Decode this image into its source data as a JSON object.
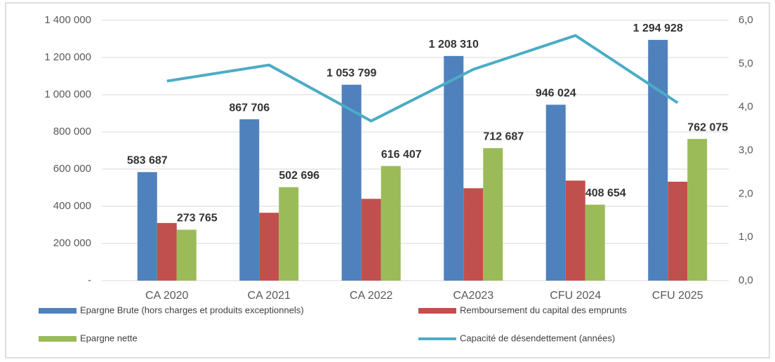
{
  "chart_data": {
    "type": "bar",
    "categories": [
      "CA 2020",
      "CA 2021",
      "CA 2022",
      "CA2023",
      "CFU 2024",
      "CFU 2025"
    ],
    "series": [
      {
        "name": "Epargne Brute (hors charges et produits exceptionnels)",
        "color": "#4f81bd",
        "values": [
          583687,
          867706,
          1053799,
          1208310,
          946024,
          1294928
        ],
        "value_labels": [
          "583 687",
          "867 706",
          "1 053 799",
          "1 208 310",
          "946 024",
          "1 294 928"
        ]
      },
      {
        "name": "Remboursement du capital des emprunts",
        "color": "#c0504d",
        "values": [
          310000,
          365000,
          440000,
          497000,
          538000,
          532000
        ]
      },
      {
        "name": "Epargne nette",
        "color": "#9bbb59",
        "values": [
          273765,
          502696,
          616407,
          712687,
          408654,
          762075
        ],
        "value_labels": [
          "273 765",
          "502 696",
          "616 407",
          "712 687",
          "408 654",
          "762 075"
        ]
      },
      {
        "name": "Capacité de désendettement (années)",
        "color": "#4bacc6",
        "type": "line",
        "axis": "y2",
        "values": [
          4.6,
          4.97,
          3.68,
          4.87,
          5.65,
          4.1
        ]
      }
    ],
    "ylim": [
      0,
      1400000
    ],
    "yticks": [
      {
        "value": 0,
        "label": "-"
      },
      {
        "value": 200000,
        "label": "200 000"
      },
      {
        "value": 400000,
        "label": "400 000"
      },
      {
        "value": 600000,
        "label": "600 000"
      },
      {
        "value": 800000,
        "label": "800 000"
      },
      {
        "value": 1000000,
        "label": "1 000 000"
      },
      {
        "value": 1200000,
        "label": "1 200 000"
      },
      {
        "value": 1400000,
        "label": "1 400 000"
      }
    ],
    "y2lim": [
      0,
      6
    ],
    "y2ticks": [
      {
        "value": 0,
        "label": "0,0"
      },
      {
        "value": 1,
        "label": "1,0"
      },
      {
        "value": 2,
        "label": "2,0"
      },
      {
        "value": 3,
        "label": "3,0"
      },
      {
        "value": 4,
        "label": "4,0"
      },
      {
        "value": 5,
        "label": "5,0"
      },
      {
        "value": 6,
        "label": "6,0"
      }
    ],
    "grid": true
  }
}
